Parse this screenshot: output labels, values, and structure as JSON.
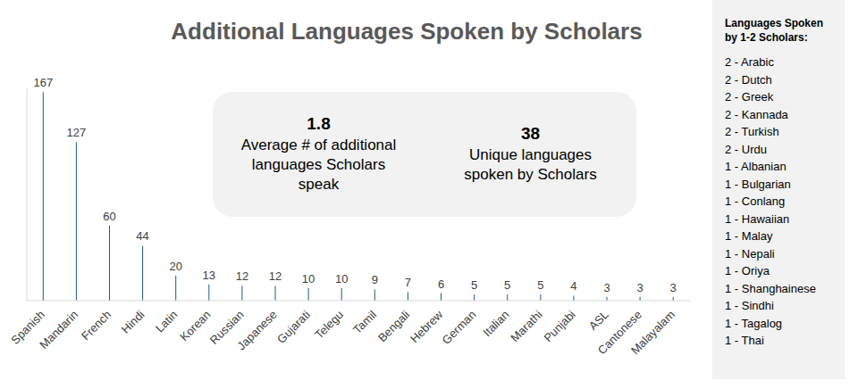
{
  "chart_data": {
    "type": "bar",
    "title": "Additional Languages Spoken by Scholars",
    "categories": [
      "Spanish",
      "Mandarin",
      "French",
      "Hindi",
      "Latin",
      "Korean",
      "Russian",
      "Japanese",
      "Gujarati",
      "Telegu",
      "Tamil",
      "Bengali",
      "Hebrew",
      "German",
      "Italian",
      "Marathi",
      "Punjabi",
      "ASL",
      "Cantonese",
      "Malayalam"
    ],
    "values": [
      167,
      127,
      60,
      44,
      20,
      13,
      12,
      12,
      10,
      10,
      9,
      7,
      6,
      5,
      5,
      5,
      4,
      3,
      3,
      3
    ],
    "color": "#1f5a8f",
    "ylim": [
      0,
      170
    ],
    "data_labels": true,
    "tick_labels": "x",
    "grid": false,
    "annotations": [
      {
        "value": 1.8,
        "label": "Average # of additional languages Scholars speak"
      },
      {
        "value": 38,
        "label": "Unique languages spoken by Scholars"
      }
    ],
    "side_list": {
      "title": "Languages Spoken by 1-2 Scholars:",
      "items": [
        {
          "value": 2,
          "label": "Arabic"
        },
        {
          "value": 2,
          "label": "Dutch"
        },
        {
          "value": 2,
          "label": "Greek"
        },
        {
          "value": 2,
          "label": "Kannada"
        },
        {
          "value": 2,
          "label": "Turkish"
        },
        {
          "value": 2,
          "label": "Urdu"
        },
        {
          "value": 1,
          "label": "Albanian"
        },
        {
          "value": 1,
          "label": "Bulgarian"
        },
        {
          "value": 1,
          "label": "Conlang"
        },
        {
          "value": 1,
          "label": "Hawaiian"
        },
        {
          "value": 1,
          "label": "Malay"
        },
        {
          "value": 1,
          "label": "Nepali"
        },
        {
          "value": 1,
          "label": "Oriya"
        },
        {
          "value": 1,
          "label": "Shanghainese"
        },
        {
          "value": 1,
          "label": "Sindhi"
        },
        {
          "value": 1,
          "label": "Tagalog"
        },
        {
          "value": 1,
          "label": "Thai"
        }
      ]
    }
  }
}
